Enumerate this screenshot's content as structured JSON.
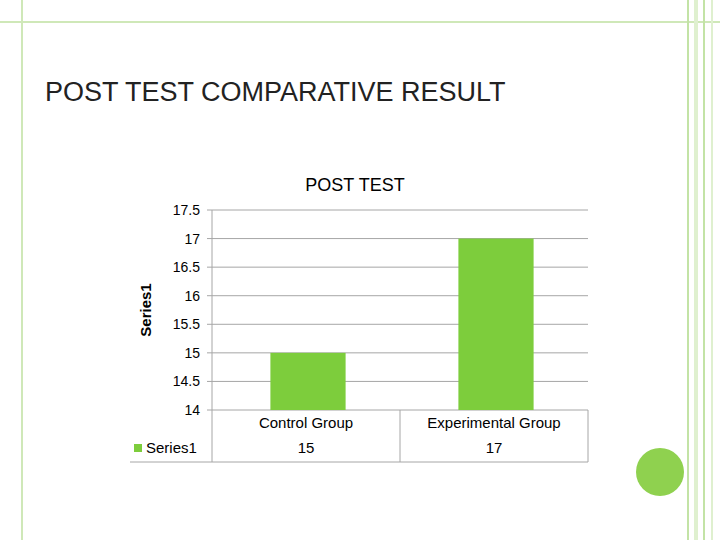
{
  "slide": {
    "title": "POST TEST COMPARATIVE RESULT"
  },
  "chart_data": {
    "type": "bar",
    "title": "POST TEST",
    "y_label": "Series1",
    "categories": [
      "Control Group",
      "Experimental Group"
    ],
    "series": [
      {
        "name": "Series1",
        "color": "#7dcd3c",
        "values": [
          15,
          17
        ]
      }
    ],
    "ylim": [
      14,
      17.5
    ],
    "yticks": [
      14,
      14.5,
      15,
      15.5,
      16,
      16.5,
      17,
      17.5
    ],
    "grid": true
  }
}
